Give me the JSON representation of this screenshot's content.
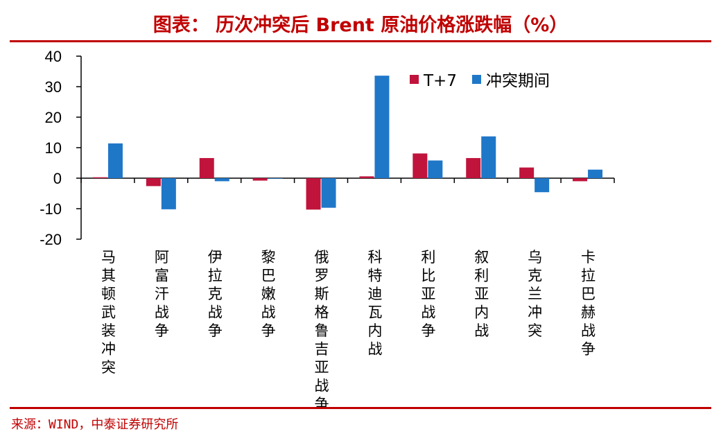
{
  "header": {
    "title": "图表： 历次冲突后 Brent 原油价格涨跌幅（%）"
  },
  "footer": {
    "source": "来源：WIND，中泰证券研究所"
  },
  "colors": {
    "accent": "#c00000",
    "series_t7": "#c0143c",
    "series_conflict": "#1f77c8"
  },
  "chart_data": {
    "type": "bar",
    "title": "图表： 历次冲突后 Brent 原油价格涨跌幅（%）",
    "xlabel": "",
    "ylabel": "",
    "ylim": [
      -20,
      40
    ],
    "yticks": [
      40,
      30,
      20,
      10,
      0,
      -10,
      -20
    ],
    "grid": false,
    "legend_position": "top-right",
    "categories": [
      "马其顿武装冲突",
      "阿富汗战争",
      "伊拉克战争",
      "黎巴嫩战争",
      "俄罗斯格鲁吉亚战争",
      "科特迪瓦内战",
      "利比亚战争",
      "叙利亚内战",
      "乌克兰冲突",
      "卡拉巴赫战争"
    ],
    "series": [
      {
        "name": "T+7",
        "values": [
          0.3,
          -2.6,
          6.6,
          -0.8,
          -10.3,
          0.6,
          8.1,
          6.6,
          3.5,
          -1.0
        ]
      },
      {
        "name": "冲突期间",
        "values": [
          11.4,
          -10.2,
          -1.0,
          0,
          -9.7,
          33.6,
          5.8,
          13.7,
          -4.6,
          2.8
        ]
      }
    ]
  }
}
